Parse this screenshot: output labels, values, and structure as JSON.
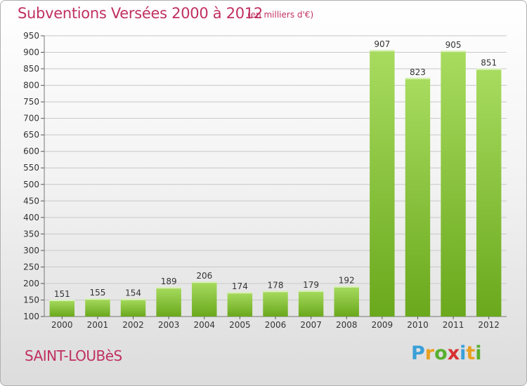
{
  "header": {
    "title": "Subventions Versées 2000 à 2012",
    "unit": "(en milliers d'€)"
  },
  "footer": {
    "commune": "SAINT-LOUBèS",
    "brand": "Proxiti",
    "brand_colors": [
      "#3aa0d8",
      "#e8a020",
      "#58b030",
      "#d83030",
      "#3aa0d8",
      "#e8a020",
      "#58b030"
    ]
  },
  "colors": {
    "bar_light": "#a8dc60",
    "bar_dark": "#6aa81c",
    "grid": "#c8c8c8",
    "title": "#c03060",
    "text": "#333333"
  },
  "chart_data": {
    "type": "bar",
    "title": "Subventions Versées 2000 à 2012",
    "xlabel": "",
    "ylabel": "",
    "categories": [
      "2000",
      "2001",
      "2002",
      "2003",
      "2004",
      "2005",
      "2006",
      "2007",
      "2008",
      "2009",
      "2010",
      "2011",
      "2012"
    ],
    "values": [
      151,
      155,
      154,
      189,
      206,
      174,
      178,
      179,
      192,
      907,
      823,
      905,
      851
    ],
    "ylim": [
      100,
      950
    ],
    "yticks": [
      100,
      150,
      200,
      250,
      300,
      350,
      400,
      450,
      500,
      550,
      600,
      650,
      700,
      750,
      800,
      850,
      900,
      950
    ],
    "grid": true
  }
}
